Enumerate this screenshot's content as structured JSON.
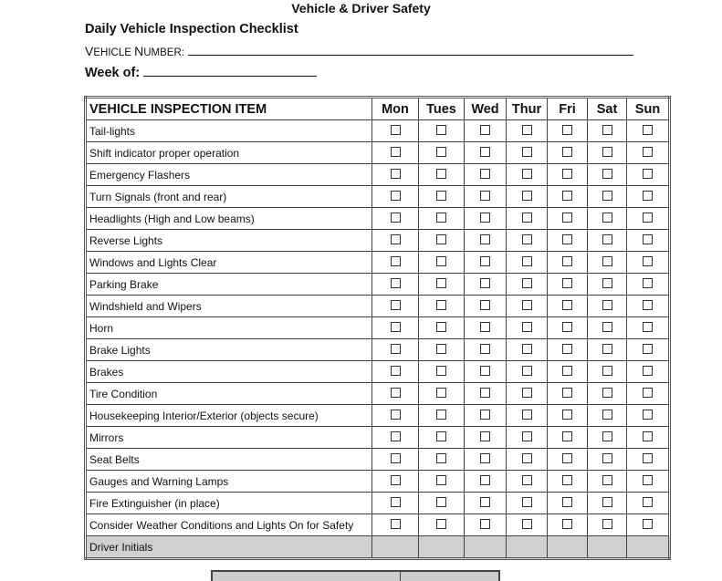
{
  "header": {
    "title": "Vehicle & Driver Safety",
    "subtitle": "Daily Vehicle Inspection Checklist",
    "vehicle_number_label": "Vehicle Number:",
    "week_of_label": "Week of:"
  },
  "table": {
    "columns": [
      "VEHICLE INSPECTION ITEM",
      "Mon",
      "Tues",
      "Wed",
      "Thur",
      "Fri",
      "Sat",
      "Sun"
    ],
    "items": [
      "Tail-lights",
      "Shift indicator proper operation",
      "Emergency Flashers",
      "Turn Signals (front and rear)",
      "Headlights (High and Low beams)",
      "Reverse Lights",
      "Windows and Lights Clear",
      "Parking Brake",
      "Windshield and Wipers",
      "Horn",
      "Brake Lights",
      "Brakes",
      "Tire Condition",
      "Housekeeping Interior/Exterior (objects secure)",
      "Mirrors",
      "Seat Belts",
      "Gauges and Warning Lamps",
      "Fire Extinguisher (in place)",
      "Consider Weather Conditions and Lights On for Safety"
    ],
    "footer_row": "Driver Initials"
  }
}
